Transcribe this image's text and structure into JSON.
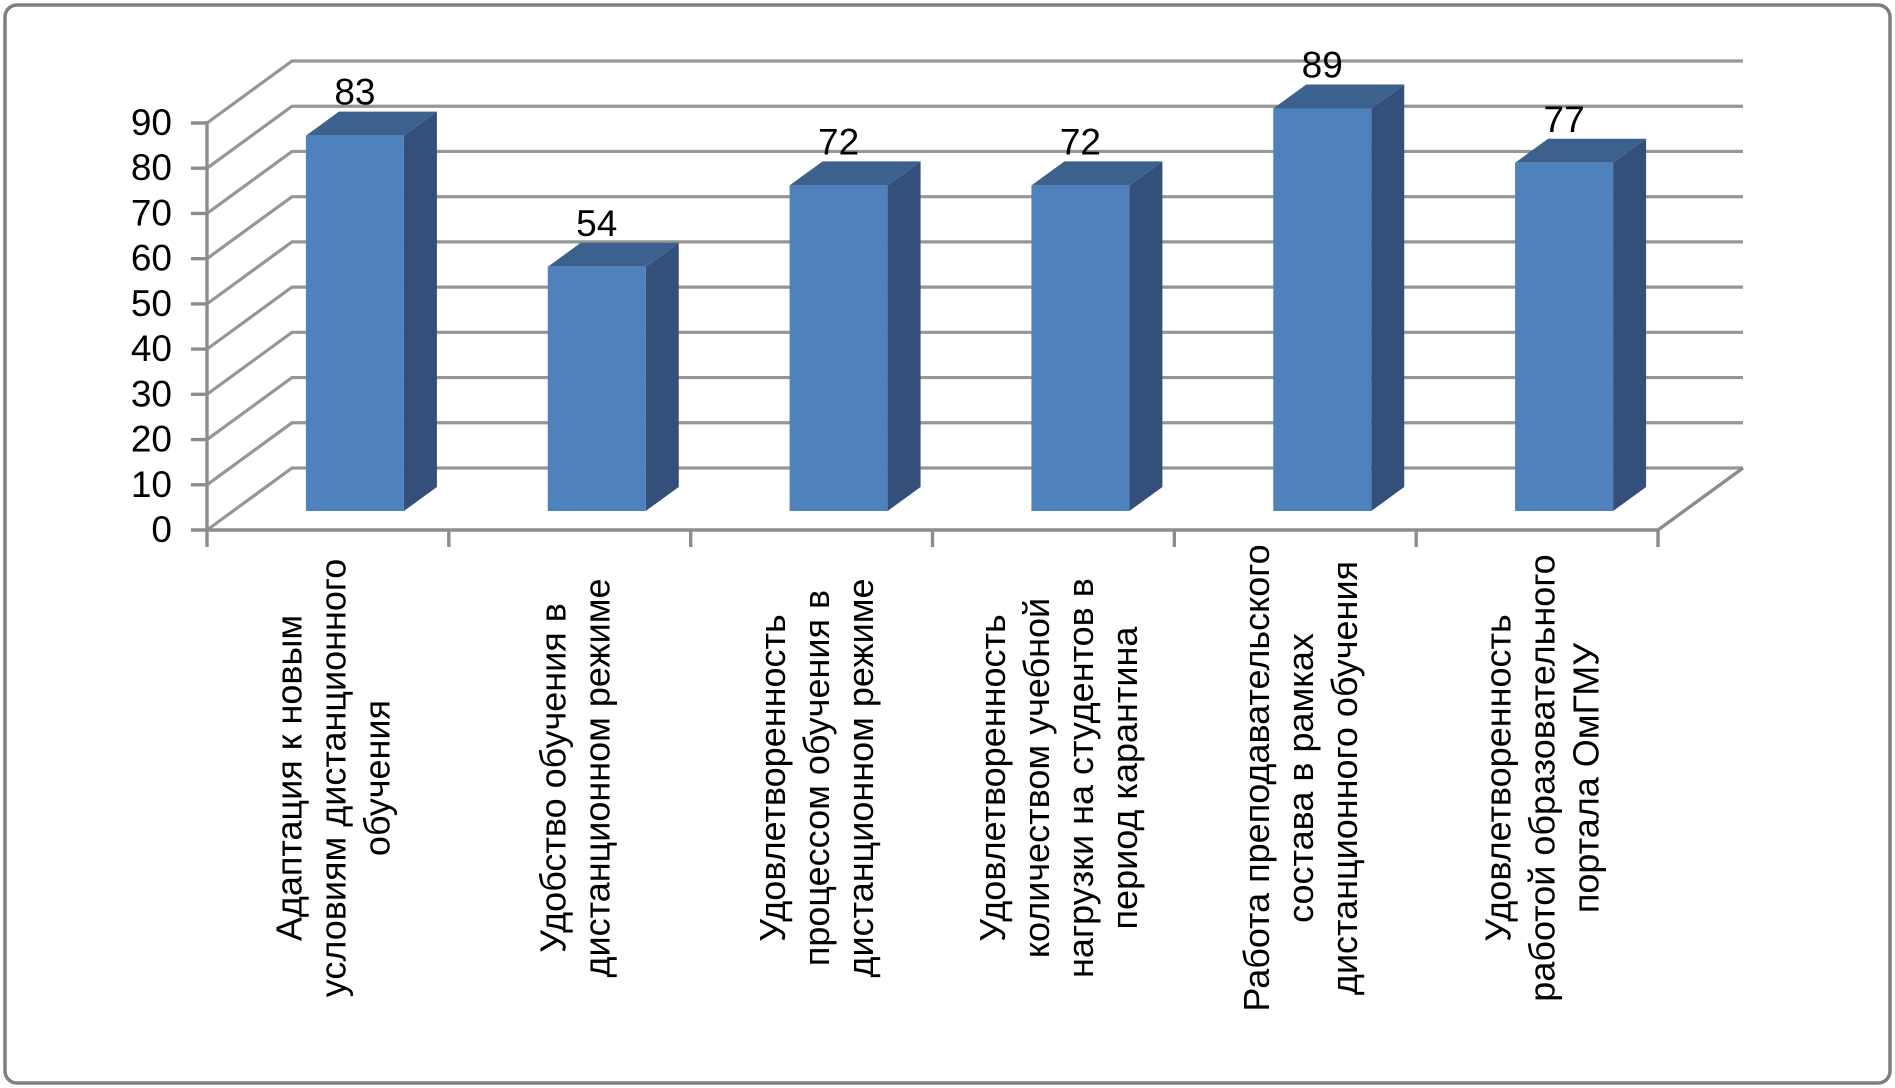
{
  "chart_data": {
    "type": "bar",
    "style": "3d-column",
    "title": "",
    "xlabel": "",
    "ylabel": "",
    "categories": [
      {
        "label": "Адаптация к новым условиям дистанционного обучения",
        "lines": [
          "Адаптация к новым",
          "условиям дистанционного",
          "обучения"
        ]
      },
      {
        "label": "Удобство обучения в дистанционном режиме",
        "lines": [
          "Удобство обучения в",
          "дистанционном режиме"
        ]
      },
      {
        "label": "Удовлетворенность процессом обучения в дистанционном режиме",
        "lines": [
          "Удовлетворенность",
          "процессом обучения в",
          "дистанционном режиме"
        ]
      },
      {
        "label": "Удовлетворенность количеством учебной нагрузки на студентов в период карантина",
        "lines": [
          "Удовлетворенность",
          "количеством учебной",
          "нагрузки на студентов в",
          "период карантина"
        ]
      },
      {
        "label": "Работа преподавательского состава в рамках дистанционного обучения",
        "lines": [
          "Работа преподавательского",
          "состава в рамках",
          "дистанционного обучения"
        ]
      },
      {
        "label": "Удовлетворенность работой образовательного портала ОмГМУ",
        "lines": [
          "Удовлетворенность",
          "работой образовательного",
          "портала ОмГМУ"
        ]
      }
    ],
    "values": [
      83,
      54,
      72,
      72,
      89,
      77
    ],
    "data_labels_shown": true,
    "ylim": [
      0,
      90
    ],
    "ytick_step": 10,
    "yticks": [
      "0",
      "10",
      "20",
      "30",
      "40",
      "50",
      "60",
      "70",
      "80",
      "90"
    ],
    "grid": true,
    "legend": false,
    "colors": {
      "bar_front": "#4F81BD",
      "bar_top": "#3C618F",
      "bar_side": "#34507A",
      "gridline": "#969696",
      "axis": "#8C8C8C",
      "border": "#7F7F7F",
      "text": "#000000",
      "background": "#FFFFFF"
    }
  }
}
